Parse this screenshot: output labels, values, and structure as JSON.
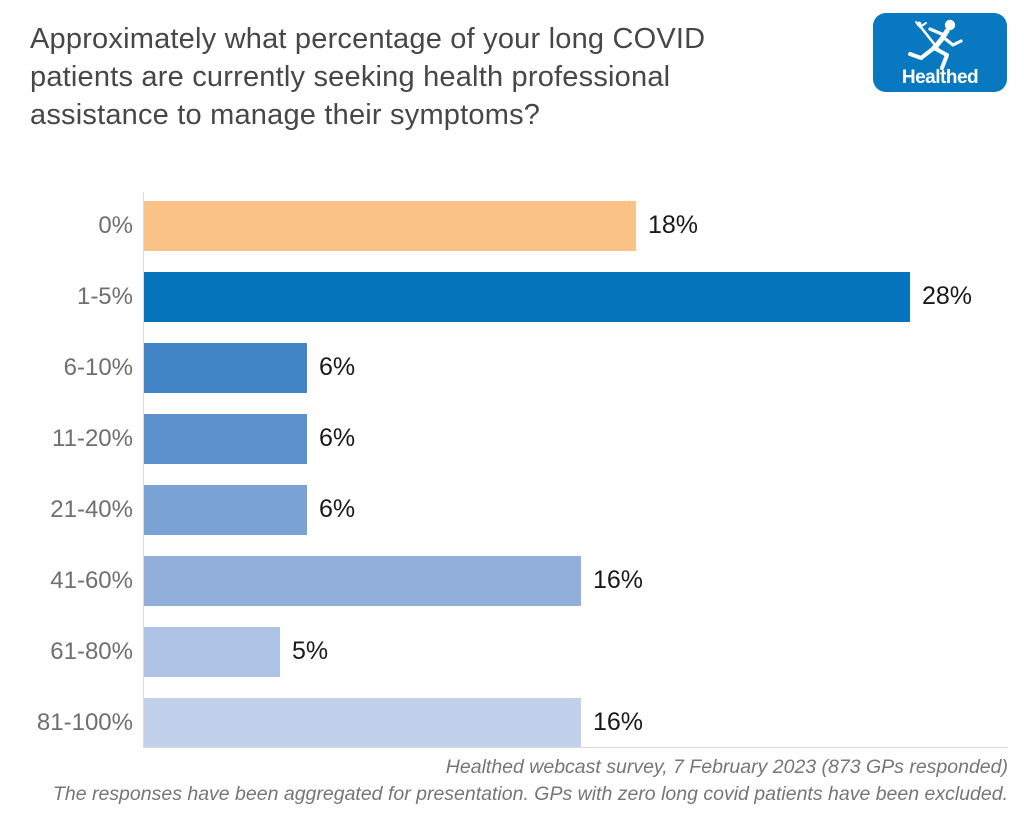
{
  "header": {
    "title_lines": [
      "Approximately what percentage of your long COVID",
      "patients are currently seeking health professional",
      "assistance to manage their symptoms?"
    ],
    "logo": {
      "text": "Healthed",
      "icon": "hermes-caduceus-runner-icon",
      "bg_color": "#0878C1",
      "fg_color": "#FFFFFF"
    }
  },
  "chart_data": {
    "type": "bar",
    "orientation": "horizontal",
    "title": "Approximately what percentage of your long COVID patients are currently seeking health professional assistance to manage their symptoms?",
    "categories": [
      "0%",
      "1-5%",
      "6-10%",
      "11-20%",
      "21-40%",
      "41-60%",
      "61-80%",
      "81-100%"
    ],
    "values": [
      18,
      28,
      6,
      6,
      6,
      16,
      5,
      16
    ],
    "value_labels": [
      "18%",
      "28%",
      "6%",
      "6%",
      "6%",
      "16%",
      "5%",
      "16%"
    ],
    "bar_colors": [
      "#FBC287",
      "#0574BA",
      "#4285C7",
      "#5C91CD",
      "#7AA2D5",
      "#92AEDB",
      "#AEC2E6",
      "#C2D1EB"
    ],
    "xlabel": "",
    "ylabel": "",
    "xlim": [
      0,
      30.6
    ],
    "grid": false,
    "legend": false,
    "axis_color": "#D9D9D9",
    "category_label_color": "#6F6F6F",
    "value_label_color": "#191919"
  },
  "footer": {
    "line1": "Healthed webcast survey, 7 February 2023 (873 GPs responded)",
    "line2": "The responses have been aggregated for presentation. GPs with zero long covid patients have been excluded."
  }
}
